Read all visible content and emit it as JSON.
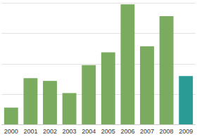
{
  "chart_data": {
    "type": "bar",
    "categories": [
      "2000",
      "2001",
      "2002",
      "2003",
      "2004",
      "2005",
      "2006",
      "2007",
      "2008",
      "2009"
    ],
    "values": [
      0.55,
      1.52,
      1.43,
      1.03,
      1.95,
      2.37,
      3.95,
      2.57,
      3.56,
      1.59
    ],
    "colors": [
      "#7aab5e",
      "#7aab5e",
      "#7aab5e",
      "#7aab5e",
      "#7aab5e",
      "#7aab5e",
      "#7aab5e",
      "#7aab5e",
      "#7aab5e",
      "#2b9b96"
    ],
    "ylim": [
      0,
      4
    ],
    "yticks": [
      0,
      1,
      2,
      3,
      4
    ],
    "grid": true,
    "tick_labels": "x"
  }
}
